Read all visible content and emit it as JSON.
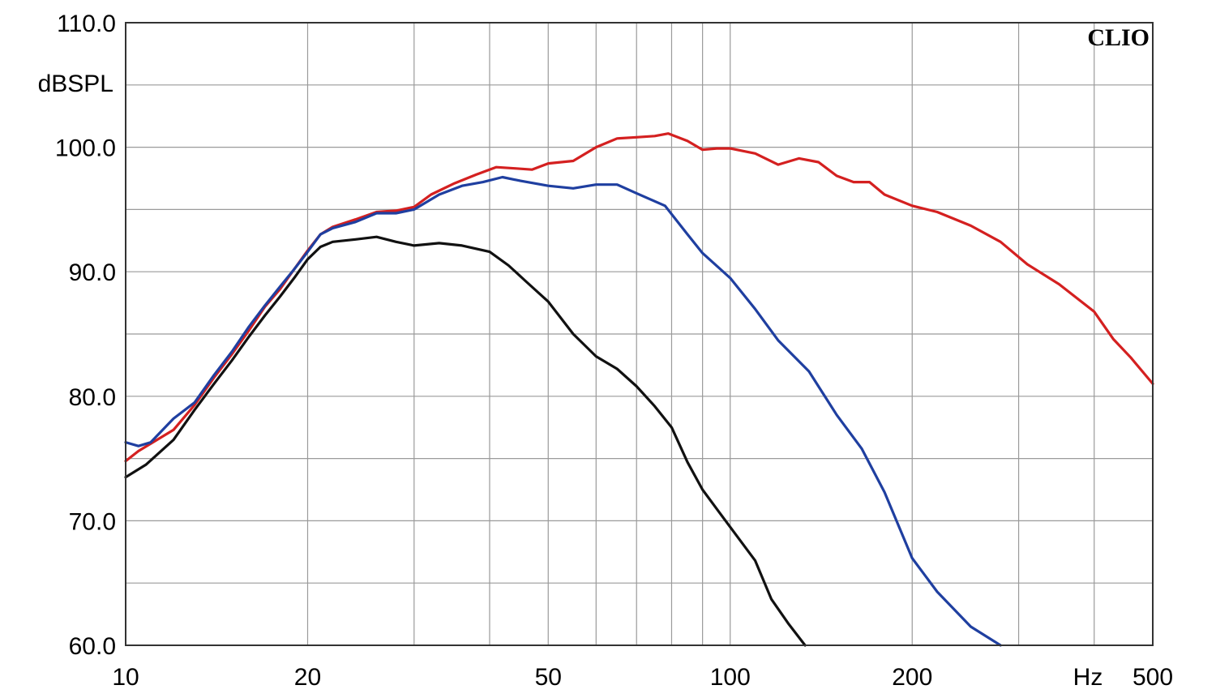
{
  "chart_data": {
    "type": "line",
    "x_scale": "log",
    "xlim": [
      10,
      500
    ],
    "ylim": [
      60,
      110
    ],
    "grid": true,
    "ylabel": "dBSPL",
    "xlabel": "Hz",
    "brand_label": "CLIO",
    "y_ticks": [
      {
        "value": 110,
        "label": "110.0"
      },
      {
        "value": 100,
        "label": "100.0"
      },
      {
        "value": 90,
        "label": "90.0"
      },
      {
        "value": 80,
        "label": "80.0"
      },
      {
        "value": 70,
        "label": "70.0"
      },
      {
        "value": 60,
        "label": "60.0"
      }
    ],
    "y_minor_ticks": [
      105,
      95,
      85,
      75,
      65
    ],
    "x_ticks": [
      {
        "value": 10,
        "label": "10"
      },
      {
        "value": 20,
        "label": "20"
      },
      {
        "value": 50,
        "label": "50"
      },
      {
        "value": 100,
        "label": "100"
      },
      {
        "value": 200,
        "label": "200"
      },
      {
        "value": 500,
        "label": "500"
      }
    ],
    "x_grid": [
      20,
      30,
      40,
      50,
      60,
      70,
      80,
      90,
      100,
      200,
      300,
      400
    ],
    "series": [
      {
        "color": "#d42020",
        "points": [
          [
            10,
            74.8
          ],
          [
            10.5,
            75.6
          ],
          [
            11,
            76.2
          ],
          [
            12,
            77.3
          ],
          [
            13,
            79.3
          ],
          [
            14,
            81.5
          ],
          [
            15,
            83.4
          ],
          [
            16,
            85.3
          ],
          [
            17,
            87.2
          ],
          [
            18,
            88.6
          ],
          [
            19,
            90.2
          ],
          [
            20,
            91.7
          ],
          [
            21,
            93
          ],
          [
            22,
            93.6
          ],
          [
            24,
            94.2
          ],
          [
            26,
            94.8
          ],
          [
            28,
            94.9
          ],
          [
            30,
            95.2
          ],
          [
            32,
            96.2
          ],
          [
            35,
            97.1
          ],
          [
            38,
            97.8
          ],
          [
            41,
            98.4
          ],
          [
            44,
            98.3
          ],
          [
            47,
            98.2
          ],
          [
            50,
            98.7
          ],
          [
            55,
            98.9
          ],
          [
            60,
            100
          ],
          [
            65,
            100.7
          ],
          [
            70,
            100.8
          ],
          [
            75,
            100.9
          ],
          [
            79,
            101.1
          ],
          [
            85,
            100.5
          ],
          [
            90,
            99.8
          ],
          [
            95,
            99.9
          ],
          [
            100,
            99.9
          ],
          [
            110,
            99.5
          ],
          [
            120,
            98.6
          ],
          [
            130,
            99.1
          ],
          [
            140,
            98.8
          ],
          [
            150,
            97.7
          ],
          [
            160,
            97.2
          ],
          [
            170,
            97.2
          ],
          [
            180,
            96.2
          ],
          [
            200,
            95.3
          ],
          [
            220,
            94.8
          ],
          [
            250,
            93.7
          ],
          [
            280,
            92.4
          ],
          [
            310,
            90.6
          ],
          [
            350,
            89
          ],
          [
            400,
            86.8
          ],
          [
            430,
            84.6
          ],
          [
            460,
            83.1
          ],
          [
            500,
            81
          ]
        ]
      },
      {
        "color": "#1f3fa0",
        "points": [
          [
            10,
            76.3
          ],
          [
            10.5,
            76
          ],
          [
            11,
            76.3
          ],
          [
            12,
            78.2
          ],
          [
            13,
            79.5
          ],
          [
            14,
            81.7
          ],
          [
            15,
            83.6
          ],
          [
            16,
            85.6
          ],
          [
            17,
            87.3
          ],
          [
            18,
            88.8
          ],
          [
            19,
            90.2
          ],
          [
            20,
            91.6
          ],
          [
            21,
            93
          ],
          [
            22,
            93.5
          ],
          [
            24,
            94
          ],
          [
            26,
            94.7
          ],
          [
            28,
            94.7
          ],
          [
            30,
            95
          ],
          [
            33,
            96.2
          ],
          [
            36,
            96.9
          ],
          [
            39,
            97.2
          ],
          [
            42,
            97.6
          ],
          [
            45,
            97.3
          ],
          [
            50,
            96.9
          ],
          [
            55,
            96.7
          ],
          [
            60,
            97
          ],
          [
            65,
            97
          ],
          [
            70,
            96.3
          ],
          [
            78,
            95.3
          ],
          [
            85,
            93
          ],
          [
            90,
            91.5
          ],
          [
            100,
            89.5
          ],
          [
            110,
            87
          ],
          [
            120,
            84.5
          ],
          [
            135,
            82
          ],
          [
            150,
            78.5
          ],
          [
            165,
            75.8
          ],
          [
            180,
            72.3
          ],
          [
            200,
            67
          ],
          [
            220,
            64.3
          ],
          [
            250,
            61.5
          ],
          [
            280,
            60
          ]
        ]
      },
      {
        "color": "#111111",
        "points": [
          [
            10,
            73.5
          ],
          [
            10.8,
            74.5
          ],
          [
            12,
            76.5
          ],
          [
            13,
            78.9
          ],
          [
            14,
            81
          ],
          [
            15,
            82.9
          ],
          [
            16,
            84.8
          ],
          [
            17,
            86.5
          ],
          [
            18,
            88
          ],
          [
            19,
            89.5
          ],
          [
            20,
            91
          ],
          [
            21,
            92
          ],
          [
            22,
            92.4
          ],
          [
            24,
            92.6
          ],
          [
            26,
            92.8
          ],
          [
            28,
            92.4
          ],
          [
            30,
            92.1
          ],
          [
            33,
            92.3
          ],
          [
            36,
            92.1
          ],
          [
            40,
            91.6
          ],
          [
            43,
            90.5
          ],
          [
            46,
            89.2
          ],
          [
            50,
            87.6
          ],
          [
            55,
            85
          ],
          [
            60,
            83.2
          ],
          [
            65,
            82.2
          ],
          [
            70,
            80.8
          ],
          [
            75,
            79.2
          ],
          [
            80,
            77.5
          ],
          [
            85,
            74.7
          ],
          [
            90,
            72.5
          ],
          [
            100,
            69.5
          ],
          [
            110,
            66.8
          ],
          [
            117,
            63.7
          ],
          [
            125,
            61.7
          ],
          [
            133,
            60
          ]
        ]
      }
    ]
  }
}
